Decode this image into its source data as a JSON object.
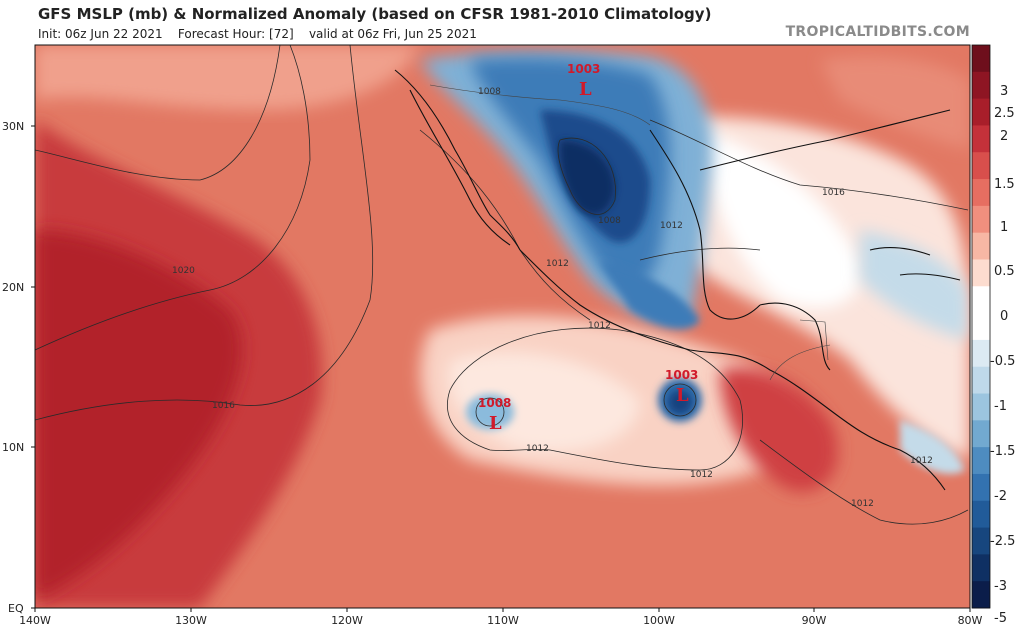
{
  "header": {
    "title": "GFS MSLP (mb) & Normalized Anomaly (based on CFSR 1981-2010 Climatology)",
    "init": "Init: 06z Jun 22 2021",
    "forecast_hour": "Forecast Hour: [72]",
    "valid": "valid at 06z Fri, Jun 25 2021",
    "brand": "TROPICALTIDBITS.COM"
  },
  "axes": {
    "lat_labels": [
      "30N",
      "20N",
      "10N",
      "EQ"
    ],
    "lon_labels": [
      "140W",
      "130W",
      "120W",
      "110W",
      "100W",
      "90W",
      "80W"
    ]
  },
  "colorbar": {
    "labels": [
      "3",
      "2.5",
      "2",
      "1.5",
      "1",
      "0.5",
      "0",
      "-0.5",
      "-1",
      "-1.5",
      "-2",
      "-2.5",
      "-3",
      "-5"
    ],
    "colors": [
      "#6e0f1c",
      "#8e1523",
      "#a81e2a",
      "#c4313a",
      "#d84f4c",
      "#e66e61",
      "#f08f7e",
      "#f7b7a4",
      "#fcdccf",
      "#ffffff",
      "#ffffff",
      "#dceaf3",
      "#bfd9ea",
      "#9cc5df",
      "#72a9d0",
      "#4e8cc0",
      "#3372b0",
      "#215b99",
      "#17467e",
      "#0f3063",
      "#0b1d4a"
    ]
  },
  "isobar_labels": [
    "1008",
    "1016",
    "1012",
    "1008",
    "1012",
    "1012",
    "1020",
    "1016",
    "1012",
    "1012",
    "1012",
    "1012"
  ],
  "lows": [
    {
      "value": "1003",
      "symbol": "L"
    },
    {
      "value": "1008",
      "symbol": "L"
    },
    {
      "value": "1003",
      "symbol": "L"
    }
  ],
  "colors": {
    "strong_positive": "#b51f2c",
    "positive": "#e0715f",
    "weak_positive": "#f7b7a4",
    "neutral": "#ffffff",
    "negative": "#4e8cc0",
    "strong_negative": "#1a4f92"
  }
}
